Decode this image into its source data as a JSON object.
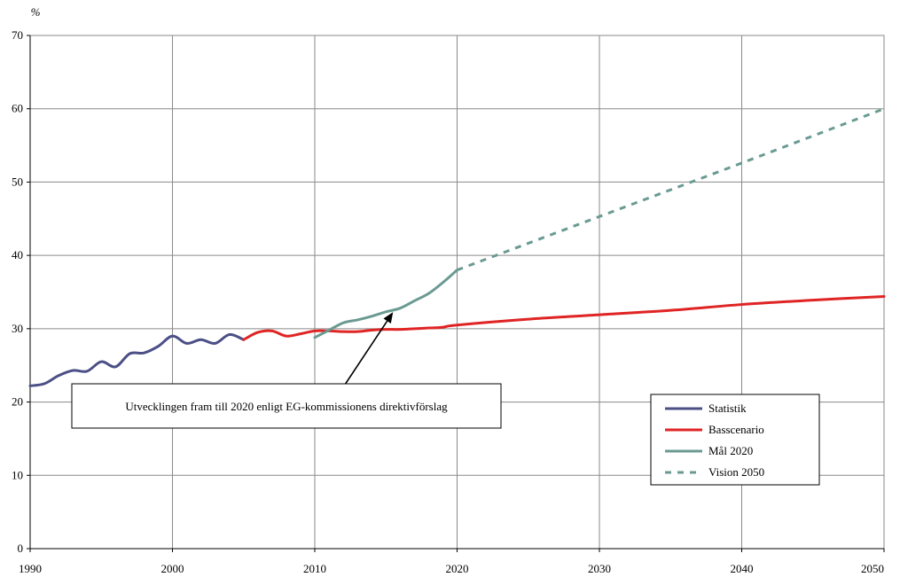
{
  "chart_data": {
    "type": "line",
    "ylabel": "%",
    "xlim": [
      1990,
      2050
    ],
    "ylim": [
      0,
      70
    ],
    "x_ticks": [
      "1990",
      "2000",
      "2010",
      "2020",
      "2030",
      "2040",
      "2050"
    ],
    "y_ticks": [
      "0",
      "10",
      "20",
      "30",
      "40",
      "50",
      "60",
      "70"
    ],
    "grid": true,
    "legend_position": "bottom-right",
    "annotation": {
      "text": "Utvecklingen fram till 2020 enligt EG-kommissionens direktivförslag",
      "arrow_target": [
        2015.5,
        32.5
      ]
    },
    "series": [
      {
        "name": "Statistik",
        "color": "#4b4f86",
        "style": "solid",
        "points": [
          [
            1990,
            22.2
          ],
          [
            1991,
            22.5
          ],
          [
            1992,
            23.6
          ],
          [
            1993,
            24.3
          ],
          [
            1994,
            24.2
          ],
          [
            1995,
            25.5
          ],
          [
            1996,
            24.8
          ],
          [
            1997,
            26.6
          ],
          [
            1998,
            26.7
          ],
          [
            1999,
            27.6
          ],
          [
            2000,
            29.0
          ],
          [
            2001,
            28.0
          ],
          [
            2002,
            28.5
          ],
          [
            2003,
            28.0
          ],
          [
            2004,
            29.2
          ],
          [
            2005,
            28.5
          ]
        ]
      },
      {
        "name": "Basscenario",
        "color": "#e02424",
        "style": "solid",
        "points": [
          [
            2005,
            28.5
          ],
          [
            2006,
            29.5
          ],
          [
            2007,
            29.7
          ],
          [
            2008,
            29.0
          ],
          [
            2009,
            29.3
          ],
          [
            2010,
            29.7
          ],
          [
            2011,
            29.7
          ],
          [
            2012,
            29.6
          ],
          [
            2013,
            29.6
          ],
          [
            2014,
            29.8
          ],
          [
            2015,
            29.9
          ],
          [
            2016,
            29.9
          ],
          [
            2017,
            30.0
          ],
          [
            2018,
            30.1
          ],
          [
            2019,
            30.2
          ],
          [
            2020,
            30.5
          ],
          [
            2025,
            31.3
          ],
          [
            2030,
            31.9
          ],
          [
            2035,
            32.5
          ],
          [
            2040,
            33.3
          ],
          [
            2045,
            33.9
          ],
          [
            2050,
            34.4
          ]
        ]
      },
      {
        "name": "Mål 2020",
        "color": "#6a9a92",
        "style": "solid",
        "points": [
          [
            2010,
            28.8
          ],
          [
            2011,
            29.8
          ],
          [
            2012,
            30.8
          ],
          [
            2013,
            31.2
          ],
          [
            2014,
            31.7
          ],
          [
            2015,
            32.3
          ],
          [
            2016,
            32.8
          ],
          [
            2017,
            33.8
          ],
          [
            2018,
            34.8
          ],
          [
            2019,
            36.3
          ],
          [
            2020,
            38.0
          ]
        ]
      },
      {
        "name": "Vision 2050",
        "color": "#6a9a92",
        "style": "dashed",
        "points": [
          [
            2020,
            38.0
          ],
          [
            2030,
            45.3
          ],
          [
            2040,
            52.6
          ],
          [
            2050,
            60.0
          ]
        ]
      }
    ]
  }
}
